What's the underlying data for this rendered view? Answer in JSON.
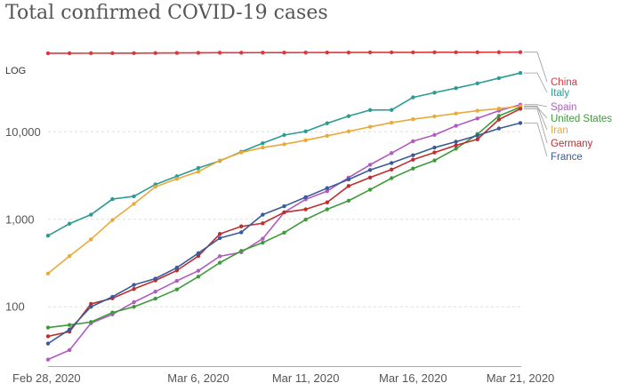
{
  "chart_data": {
    "type": "line",
    "title": "Total confirmed COVID-19 cases",
    "scale_label": "LOG",
    "y_scale": "log",
    "ylim": [
      21,
      120000
    ],
    "y_ticks": [
      {
        "value": 100,
        "label": "100"
      },
      {
        "value": 1000,
        "label": "1,000"
      },
      {
        "value": 10000,
        "label": "10,000"
      }
    ],
    "x_start": "2020-02-28",
    "x_ticks": [
      {
        "date": "2020-02-28",
        "label": "Feb 28, 2020"
      },
      {
        "date": "2020-03-06",
        "label": "Mar 6, 2020"
      },
      {
        "date": "2020-03-11",
        "label": "Mar 11, 2020"
      },
      {
        "date": "2020-03-16",
        "label": "Mar 16, 2020"
      },
      {
        "date": "2020-03-21",
        "label": "Mar 21, 2020"
      }
    ],
    "grid": "horizontal-dashed",
    "legend": "right",
    "series": [
      {
        "name": "China",
        "color": "#d9393e",
        "values": [
          78900,
          78900,
          79000,
          79100,
          79200,
          79400,
          79600,
          79800,
          80000,
          80100,
          80200,
          80300,
          80400,
          80500,
          80600,
          80700,
          80800,
          80800,
          80900,
          80900,
          81000,
          81100,
          81200
        ]
      },
      {
        "name": "Italy",
        "color": "#2b9b94",
        "values": [
          650,
          890,
          1130,
          1700,
          1830,
          2500,
          3100,
          3850,
          4650,
          5900,
          7400,
          9170,
          10100,
          12500,
          15100,
          17700,
          17750,
          24700,
          27980,
          31500,
          35700,
          41000,
          47000
        ]
      },
      {
        "name": "Spain",
        "color": "#b05bbd",
        "values": [
          25,
          32,
          65,
          82,
          113,
          149,
          198,
          258,
          378,
          420,
          600,
          1200,
          1690,
          2100,
          3000,
          4200,
          5700,
          7800,
          9200,
          11700,
          14200,
          17400,
          20400
        ]
      },
      {
        "name": "United States",
        "color": "#3e9a3a",
        "values": [
          58,
          62,
          67,
          86,
          100,
          124,
          158,
          221,
          319,
          435,
          541,
          704,
          994,
          1300,
          1630,
          2180,
          2950,
          3800,
          4700,
          6400,
          9400,
          15200,
          19100
        ]
      },
      {
        "name": "Iran",
        "color": "#eba937",
        "values": [
          240,
          380,
          590,
          980,
          1500,
          2350,
          2900,
          3500,
          4700,
          5800,
          6600,
          7200,
          8000,
          9000,
          10100,
          11400,
          12700,
          13900,
          15000,
          16200,
          17400,
          18400,
          19600
        ]
      },
      {
        "name": "Germany",
        "color": "#bd2e2e",
        "values": [
          46,
          52,
          108,
          125,
          160,
          200,
          260,
          380,
          680,
          830,
          900,
          1200,
          1300,
          1560,
          2400,
          3000,
          3700,
          4800,
          5800,
          7000,
          8200,
          13800,
          18300
        ]
      },
      {
        "name": "France",
        "color": "#3b5a9a",
        "values": [
          38,
          55,
          100,
          130,
          178,
          210,
          280,
          410,
          610,
          710,
          1130,
          1410,
          1790,
          2270,
          2850,
          3660,
          4400,
          5400,
          6600,
          7700,
          9050,
          10900,
          12600
        ]
      }
    ]
  }
}
